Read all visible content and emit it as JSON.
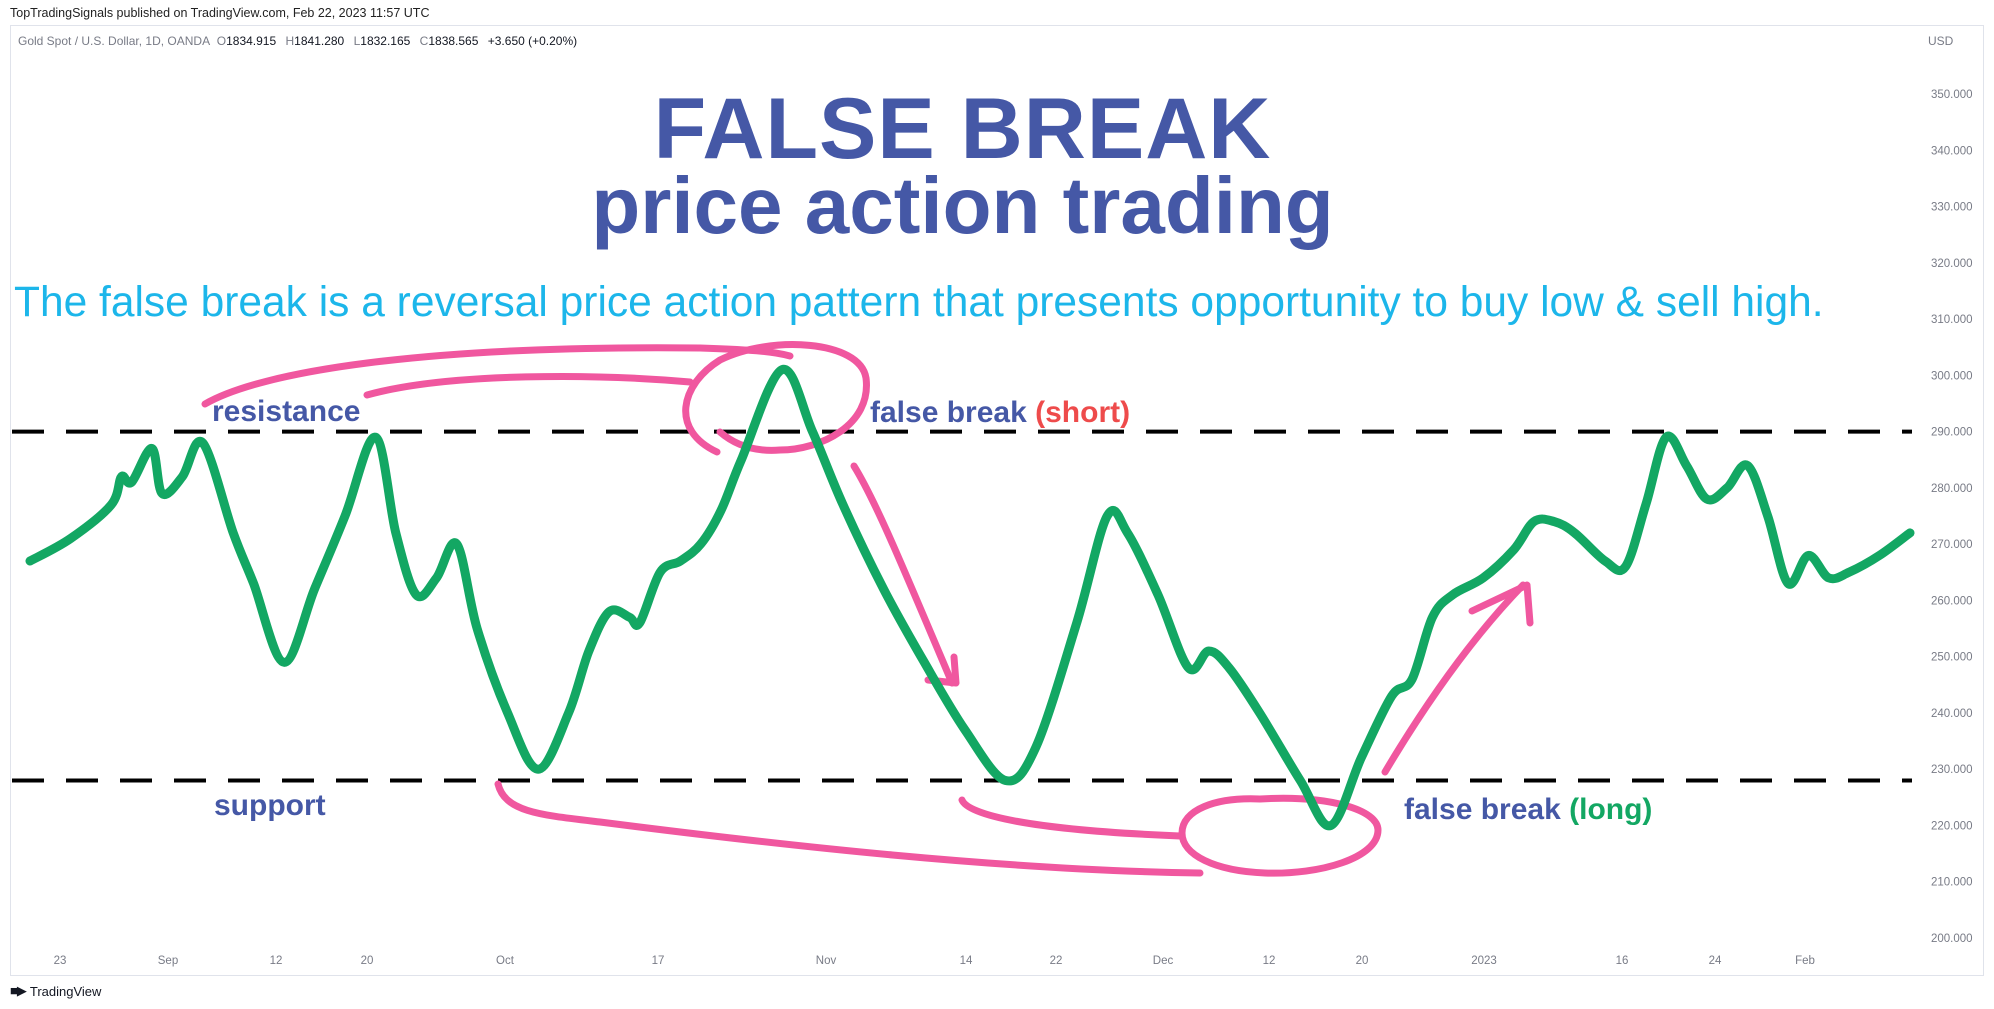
{
  "header": {
    "published": "TopTradingSignals published on TradingView.com, Feb 22, 2023 11:57 UTC"
  },
  "legend": {
    "symbol": "Gold Spot / U.S. Dollar, 1D, OANDA",
    "open_key": "O",
    "open": "1834.915",
    "high_key": "H",
    "high": "1841.280",
    "low_key": "L",
    "low": "1832.165",
    "close_key": "C",
    "close": "1838.565",
    "change": "+3.650 (+0.20%)"
  },
  "currency": "USD",
  "headline": {
    "line1": "FALSE BREAK",
    "line2": "price action trading",
    "subtitle": "The false break is a reversal price action pattern that presents opportunity to buy low & sell high."
  },
  "annotations": {
    "resistance": "resistance",
    "support": "support",
    "short_prefix": "false break",
    "short_tag": "(short)",
    "long_prefix": "false break",
    "long_tag": "(long)"
  },
  "colors": {
    "title": "#4558a6",
    "subtitle": "#1cb6ea",
    "price_line": "#13a763",
    "marker": "#f0579f",
    "short_tag": "#ee4b4b",
    "long_tag": "#13a763",
    "levels": "#000000"
  },
  "footer": {
    "brand": "TradingView",
    "logo_icon": "tradingview-logo-icon"
  },
  "chart_data": {
    "type": "line",
    "y_axis": {
      "ticks": [
        "350.000",
        "340.000",
        "330.000",
        "320.000",
        "310.000",
        "300.000",
        "290.000",
        "280.000",
        "270.000",
        "260.000",
        "250.000",
        "240.000",
        "230.000",
        "220.000",
        "210.000",
        "200.000"
      ],
      "ylim": [
        200,
        350
      ],
      "position": "right"
    },
    "x_axis": {
      "ticks": [
        "23",
        "Sep",
        "12",
        "20",
        "Oct",
        "17",
        "Nov",
        "14",
        "22",
        "Dec",
        "12",
        "20",
        "2023",
        "16",
        "24",
        "Feb"
      ]
    },
    "grid": false,
    "levels": [
      {
        "name": "resistance",
        "y": 290,
        "style": "dashed"
      },
      {
        "name": "support",
        "y": 228,
        "style": "dashed"
      }
    ],
    "series": [
      {
        "values": [
          [
            0,
            267
          ],
          [
            4,
            271
          ],
          [
            8,
            277
          ],
          [
            9,
            282
          ],
          [
            10,
            281
          ],
          [
            12,
            287
          ],
          [
            13,
            279
          ],
          [
            15,
            282
          ],
          [
            17,
            288
          ],
          [
            20,
            272
          ],
          [
            22,
            263
          ],
          [
            25,
            249
          ],
          [
            28,
            262
          ],
          [
            31,
            275
          ],
          [
            34,
            289
          ],
          [
            36,
            272
          ],
          [
            38,
            261
          ],
          [
            40,
            264
          ],
          [
            42,
            270
          ],
          [
            44,
            255
          ],
          [
            47,
            240
          ],
          [
            50,
            230
          ],
          [
            53,
            240
          ],
          [
            55,
            251
          ],
          [
            57,
            258
          ],
          [
            59,
            257
          ],
          [
            60,
            256
          ],
          [
            62,
            265
          ],
          [
            64,
            267
          ],
          [
            66,
            270
          ],
          [
            68,
            276
          ],
          [
            70,
            285
          ],
          [
            74,
            301
          ],
          [
            77,
            290
          ],
          [
            80,
            277
          ],
          [
            84,
            262
          ],
          [
            88,
            249
          ],
          [
            92,
            237
          ],
          [
            96,
            228
          ],
          [
            99,
            234
          ],
          [
            103,
            256
          ],
          [
            106,
            275
          ],
          [
            108,
            272
          ],
          [
            111,
            261
          ],
          [
            114,
            248
          ],
          [
            116,
            251
          ],
          [
            118,
            248
          ],
          [
            121,
            240
          ],
          [
            125,
            228
          ],
          [
            128,
            220
          ],
          [
            131,
            232
          ],
          [
            134,
            243
          ],
          [
            136,
            246
          ],
          [
            138,
            257
          ],
          [
            140,
            261
          ],
          [
            143,
            264
          ],
          [
            146,
            269
          ],
          [
            148,
            274
          ],
          [
            150,
            274
          ],
          [
            152,
            272
          ],
          [
            155,
            267
          ],
          [
            157,
            266
          ],
          [
            159,
            277
          ],
          [
            161,
            289
          ],
          [
            163,
            284
          ],
          [
            165,
            278
          ],
          [
            167,
            280
          ],
          [
            169,
            284
          ],
          [
            171,
            275
          ],
          [
            173,
            263
          ],
          [
            175,
            268
          ],
          [
            177,
            264
          ],
          [
            179,
            265
          ],
          [
            182,
            268
          ],
          [
            185,
            272
          ]
        ]
      }
    ]
  }
}
